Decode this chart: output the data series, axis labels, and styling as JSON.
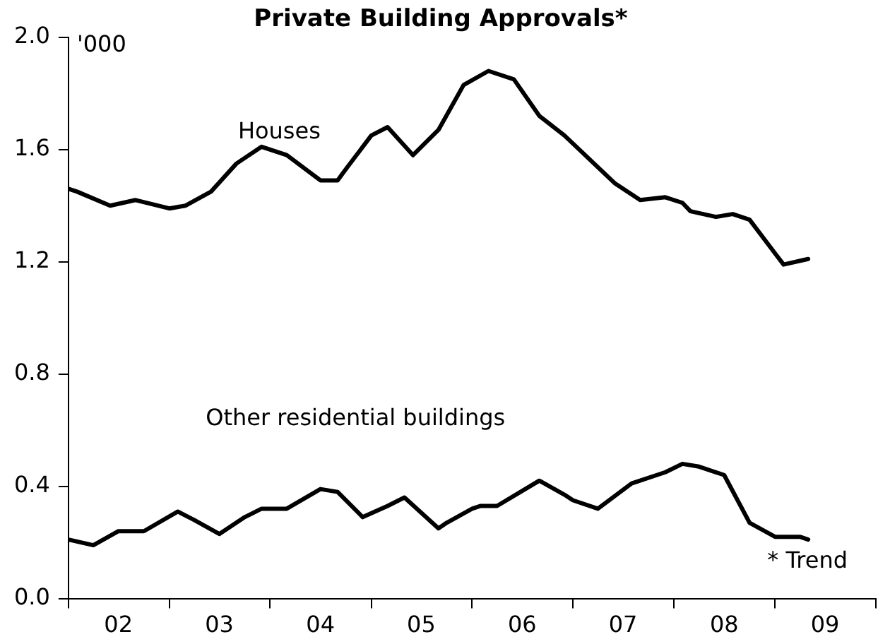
{
  "chart_data": {
    "type": "line",
    "title": "Private Building Approvals*",
    "ylabel": "'000",
    "annotations": [
      "* Trend"
    ],
    "xlim": [
      "2002-01",
      "2010-01"
    ],
    "xticks": [
      {
        "value": "2002-01",
        "label": null
      },
      {
        "value": "2002-07",
        "label": "02"
      },
      {
        "value": "2003-01",
        "label": null
      },
      {
        "value": "2003-07",
        "label": "03"
      },
      {
        "value": "2004-01",
        "label": null
      },
      {
        "value": "2004-07",
        "label": "04"
      },
      {
        "value": "2005-01",
        "label": null
      },
      {
        "value": "2005-07",
        "label": "05"
      },
      {
        "value": "2006-01",
        "label": null
      },
      {
        "value": "2006-07",
        "label": "06"
      },
      {
        "value": "2007-01",
        "label": null
      },
      {
        "value": "2007-07",
        "label": "07"
      },
      {
        "value": "2008-01",
        "label": null
      },
      {
        "value": "2008-07",
        "label": "08"
      },
      {
        "value": "2009-01",
        "label": null
      },
      {
        "value": "2009-07",
        "label": "09"
      },
      {
        "value": "2010-01",
        "label": null
      }
    ],
    "ylim": [
      0,
      2
    ],
    "yticks": [
      {
        "value": 0,
        "label": "0.0"
      },
      {
        "value": 0.4,
        "label": "0.4"
      },
      {
        "value": 0.8,
        "label": "0.8"
      },
      {
        "value": 1.2,
        "label": "1.2"
      },
      {
        "value": 1.6,
        "label": "1.6"
      },
      {
        "value": 2,
        "label": "2.0"
      }
    ],
    "series": [
      {
        "name": "Houses",
        "color": "#000000",
        "x": [
          "2002-01",
          "2002-02",
          "2002-06",
          "2002-09",
          "2003-01",
          "2003-03",
          "2003-06",
          "2003-09",
          "2003-12",
          "2004-03",
          "2004-07",
          "2004-09",
          "2004-10",
          "2005-01",
          "2005-03",
          "2005-06",
          "2005-09",
          "2005-12",
          "2006-03",
          "2006-06",
          "2006-09",
          "2006-12",
          "2007-06",
          "2007-09",
          "2007-12",
          "2008-02",
          "2008-03",
          "2008-06",
          "2008-08",
          "2008-10",
          "2009-01",
          "2009-02",
          "2009-05"
        ],
        "values": [
          1.46,
          1.45,
          1.4,
          1.42,
          1.39,
          1.4,
          1.45,
          1.55,
          1.61,
          1.58,
          1.49,
          1.49,
          1.53,
          1.65,
          1.68,
          1.58,
          1.67,
          1.83,
          1.88,
          1.85,
          1.72,
          1.65,
          1.48,
          1.42,
          1.43,
          1.41,
          1.38,
          1.36,
          1.37,
          1.35,
          1.23,
          1.19,
          1.21
        ]
      },
      {
        "name": "Other residential buildings",
        "color": "#000000",
        "x": [
          "2002-01",
          "2002-04",
          "2002-07",
          "2002-10",
          "2003-02",
          "2003-04",
          "2003-07",
          "2003-10",
          "2003-12",
          "2004-03",
          "2004-07",
          "2004-09",
          "2004-12",
          "2005-03",
          "2005-05",
          "2005-09",
          "2005-10",
          "2006-01",
          "2006-02",
          "2006-04",
          "2006-09",
          "2006-12",
          "2007-01",
          "2007-04",
          "2007-08",
          "2007-12",
          "2008-02",
          "2008-04",
          "2008-07",
          "2008-10",
          "2009-01",
          "2009-02",
          "2009-04",
          "2009-05"
        ],
        "values": [
          0.21,
          0.19,
          0.24,
          0.24,
          0.31,
          0.28,
          0.23,
          0.29,
          0.32,
          0.32,
          0.39,
          0.38,
          0.29,
          0.33,
          0.36,
          0.25,
          0.27,
          0.32,
          0.33,
          0.33,
          0.42,
          0.37,
          0.35,
          0.32,
          0.41,
          0.45,
          0.48,
          0.47,
          0.44,
          0.27,
          0.22,
          0.22,
          0.22,
          0.21
        ]
      }
    ]
  }
}
